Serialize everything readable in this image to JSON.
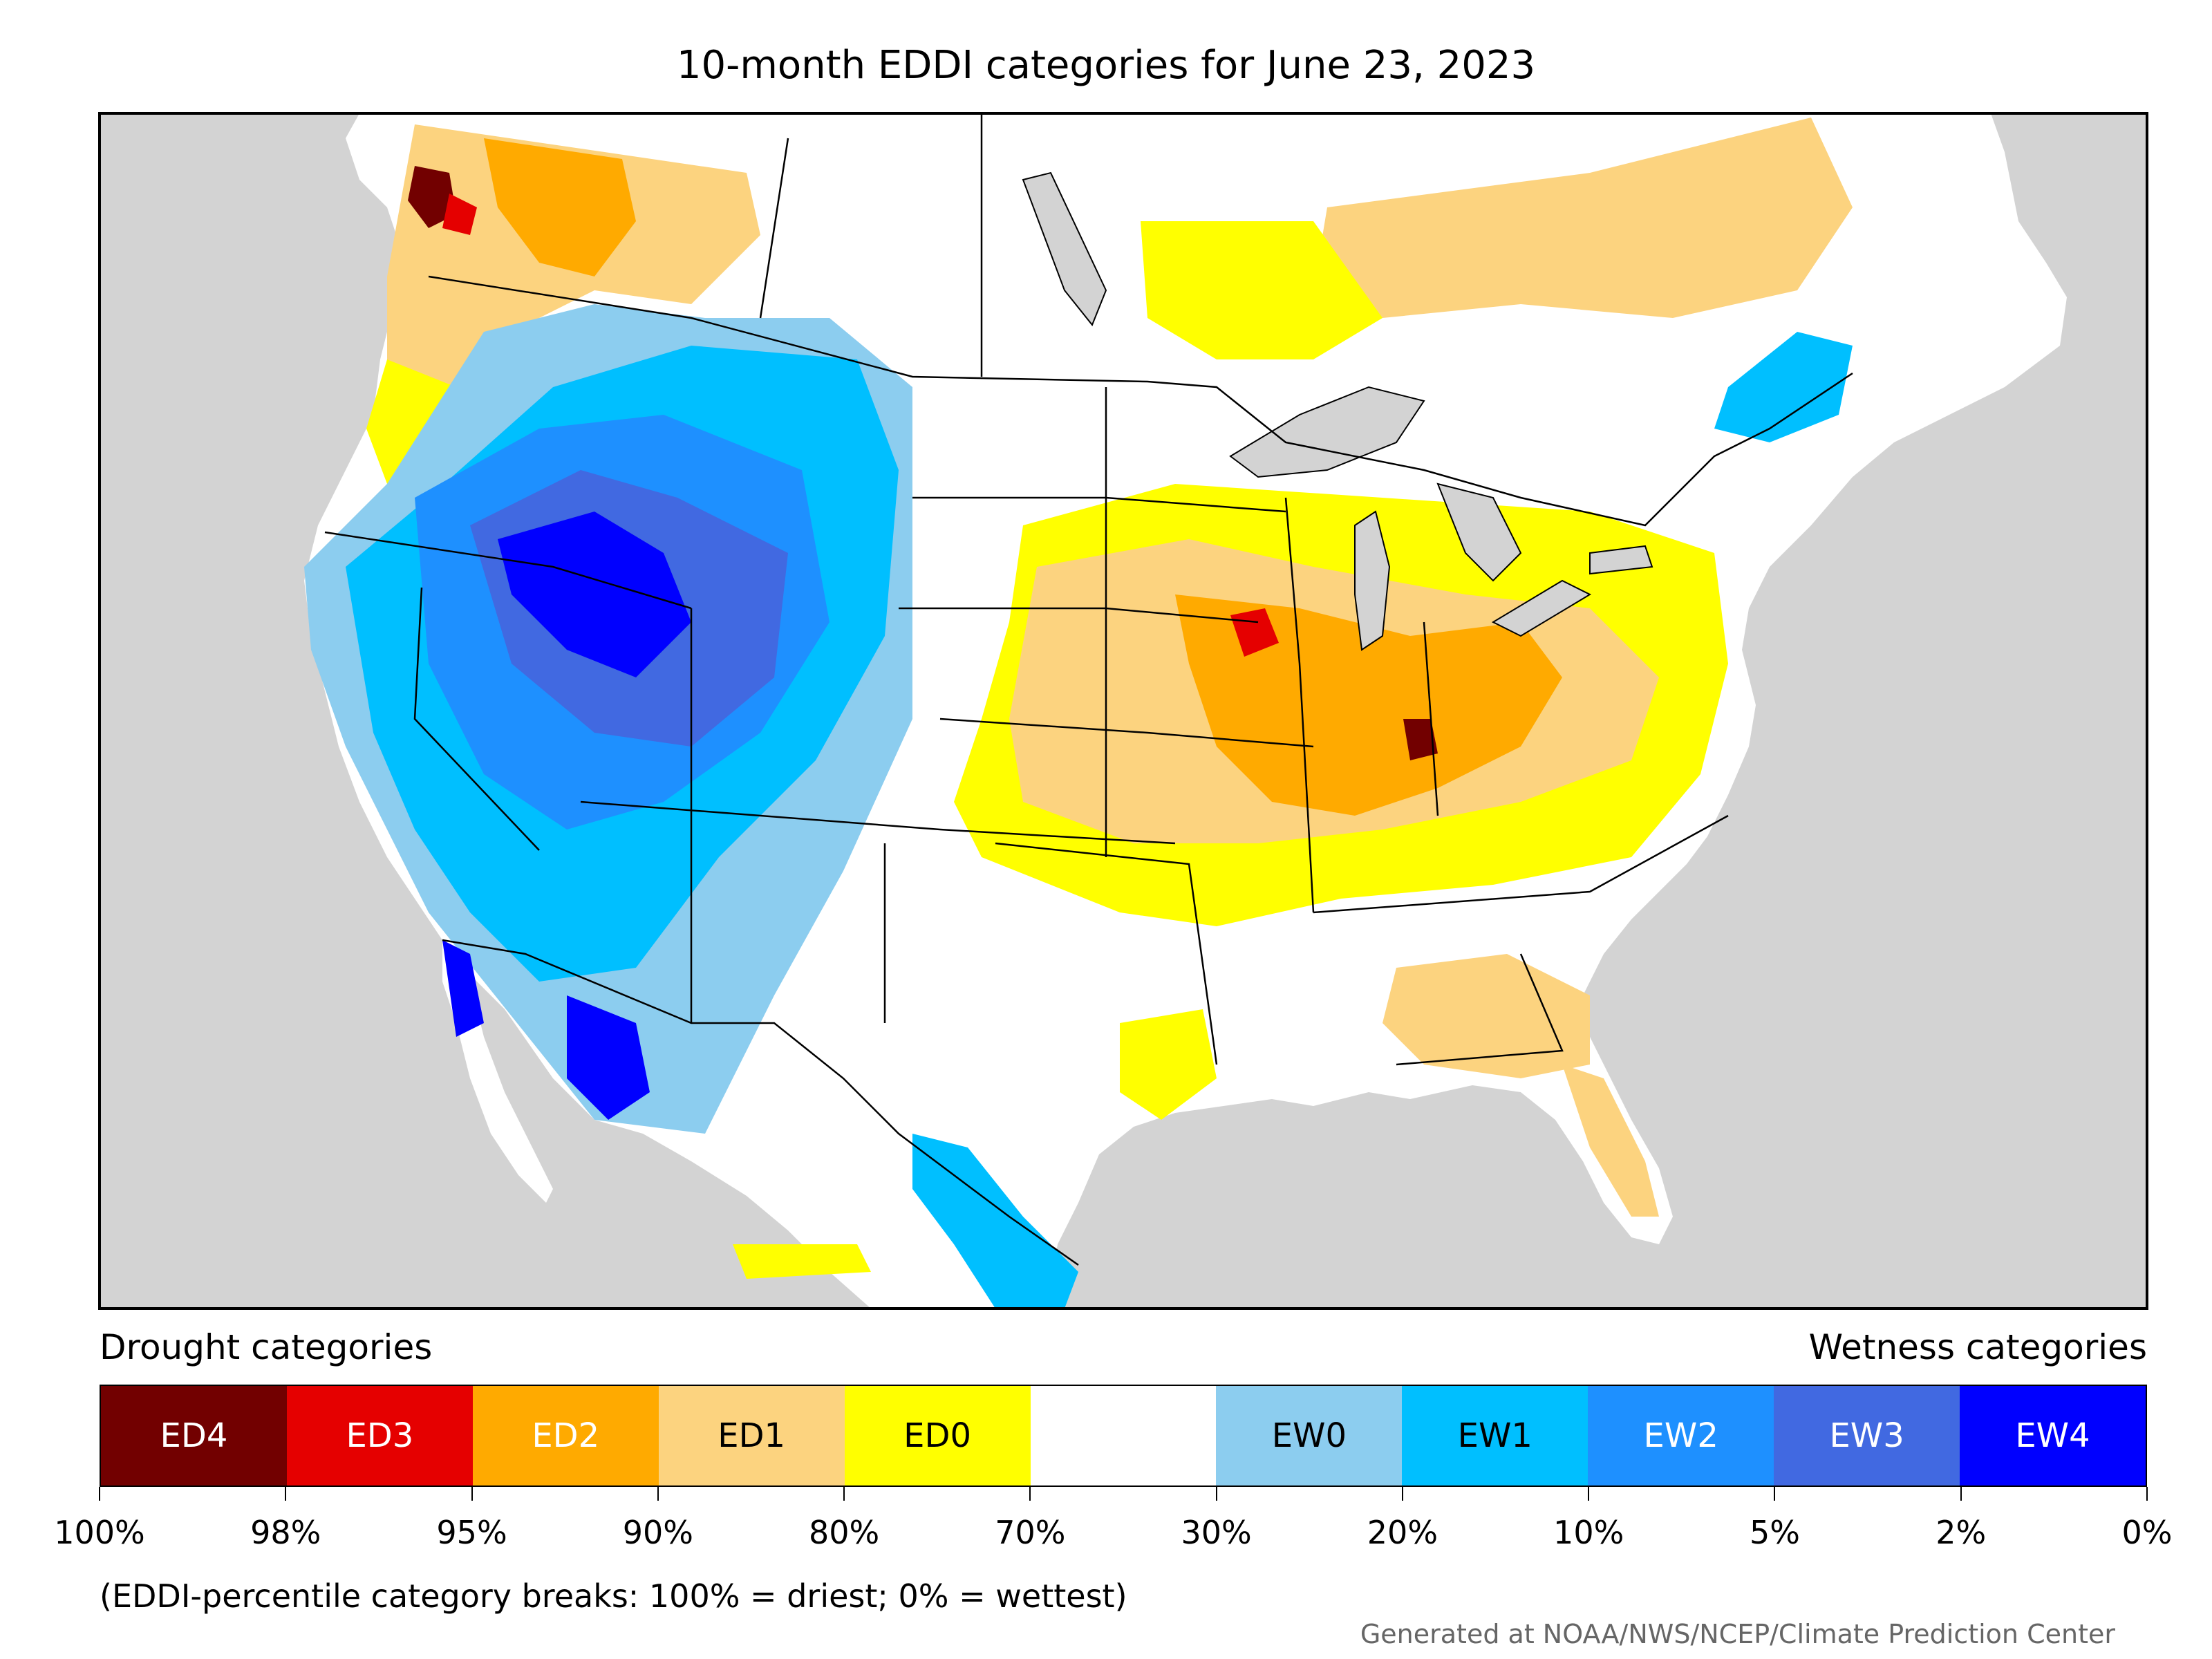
{
  "title": "10-month EDDI categories for June 23, 2023",
  "legend": {
    "drought_heading": "Drought categories",
    "wetness_heading": "Wetness categories",
    "categories": [
      {
        "label": "ED4",
        "color": "#720000",
        "text_color": "#ffffff"
      },
      {
        "label": "ED3",
        "color": "#e50000",
        "text_color": "#ffffff"
      },
      {
        "label": "ED2",
        "color": "#ffaa00",
        "text_color": "#ffffff"
      },
      {
        "label": "ED1",
        "color": "#fcd37f",
        "text_color": "#000000"
      },
      {
        "label": "ED0",
        "color": "#ffff00",
        "text_color": "#000000"
      },
      {
        "label": "",
        "color": "#ffffff",
        "text_color": "#000000"
      },
      {
        "label": "EW0",
        "color": "#8ccdef",
        "text_color": "#000000"
      },
      {
        "label": "EW1",
        "color": "#00bfff",
        "text_color": "#000000"
      },
      {
        "label": "EW2",
        "color": "#1e90ff",
        "text_color": "#ffffff"
      },
      {
        "label": "EW3",
        "color": "#4169e1",
        "text_color": "#ffffff"
      },
      {
        "label": "EW4",
        "color": "#0000ff",
        "text_color": "#ffffff"
      }
    ],
    "tick_labels": [
      "100%",
      "98%",
      "95%",
      "90%",
      "80%",
      "70%",
      "30%",
      "20%",
      "10%",
      "5%",
      "2%",
      "0%"
    ],
    "breaks_note": "(EDDI-percentile category breaks: 100% = driest; 0% = wettest)"
  },
  "credit": "Generated at NOAA/NWS/NCEP/Climate Prediction Center",
  "map_colors": {
    "ocean": "#d3d3d3",
    "land": "#ffffff",
    "lakes": "#d3d3d3",
    "borders": "#000000"
  }
}
